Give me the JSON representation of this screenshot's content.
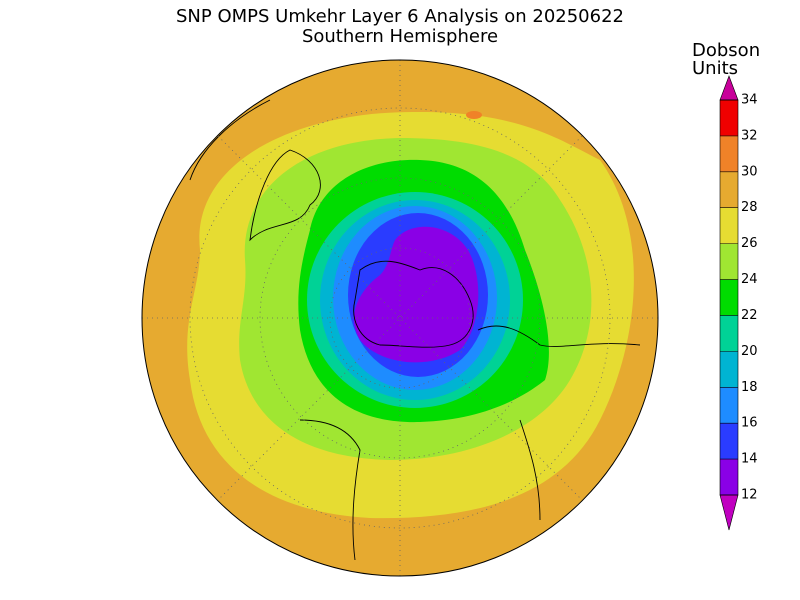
{
  "title": "SNP OMPS Umkehr Layer 6 Analysis on 20250622",
  "subtitle": "Southern Hemisphere",
  "colorbar": {
    "label": [
      "Dobson",
      "Units"
    ],
    "levels": [
      12,
      14,
      16,
      18,
      20,
      22,
      24,
      26,
      28,
      30,
      32,
      34
    ],
    "colors": [
      "#8a00e6",
      "#2a3cff",
      "#1e8cff",
      "#00b4d2",
      "#00d296",
      "#00dc00",
      "#a0e632",
      "#e6dc32",
      "#e6aa30",
      "#f08228",
      "#f00000"
    ],
    "under_color": "#c000c0",
    "over_color": "#c8009a"
  }
}
